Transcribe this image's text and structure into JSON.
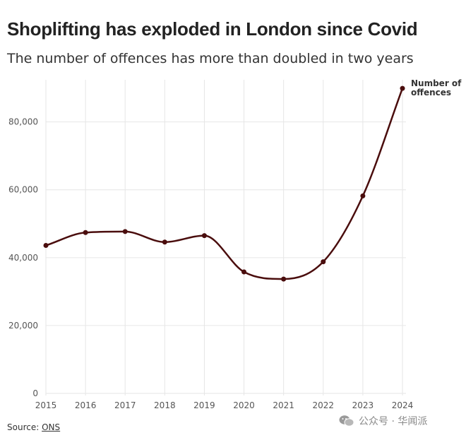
{
  "title": "Shoplifting has exploded in London since Covid",
  "subtitle": "The number of offences has more than doubled in two years",
  "source": {
    "label": "Source:",
    "link": "ONS"
  },
  "watermark": {
    "text": "公众号 · 华闻派",
    "icon": "wechat-icon"
  },
  "colors": {
    "line": "#4a0d0d",
    "grid": "#e6e6e6",
    "text": "#222222",
    "axis_text": "#555555"
  },
  "chart_data": {
    "type": "line",
    "title": "Shoplifting has exploded in London since Covid",
    "subtitle": "The number of offences has more than doubled in two years",
    "x": [
      2015,
      2016,
      2017,
      2018,
      2019,
      2020,
      2021,
      2022,
      2023,
      2024
    ],
    "x_ticks": [
      "2015",
      "2016",
      "2017",
      "2018",
      "2019",
      "2020",
      "2021",
      "2022",
      "2023",
      "2024"
    ],
    "y_ticks": [
      "0",
      "20,000",
      "40,000",
      "60,000",
      "80,000"
    ],
    "ylim": [
      0,
      92000
    ],
    "series": [
      {
        "name": "Number of offences",
        "label_lines": [
          "Number of",
          "offences"
        ],
        "values": [
          43600,
          47400,
          47700,
          44600,
          46500,
          35800,
          33700,
          38800,
          58200,
          89900
        ]
      }
    ],
    "grid": true,
    "legend": "direct label at end of line"
  }
}
